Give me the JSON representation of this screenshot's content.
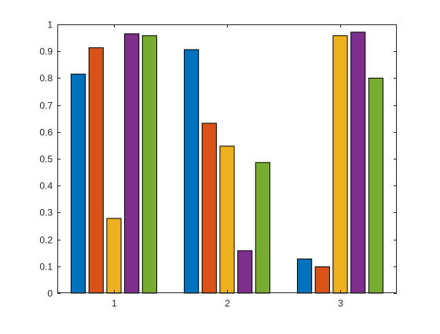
{
  "chart_data": {
    "type": "bar",
    "categories": [
      "1",
      "2",
      "3"
    ],
    "series": [
      {
        "color": "#0072BD",
        "values": [
          0.815,
          0.906,
          0.127
        ]
      },
      {
        "color": "#D95319",
        "values": [
          0.913,
          0.632,
          0.098
        ]
      },
      {
        "color": "#EDB120",
        "values": [
          0.278,
          0.547,
          0.958
        ]
      },
      {
        "color": "#7E2F8E",
        "values": [
          0.965,
          0.158,
          0.971
        ]
      },
      {
        "color": "#77AC30",
        "values": [
          0.958,
          0.486,
          0.8
        ]
      }
    ],
    "y_ticks": [
      "0",
      "0.1",
      "0.2",
      "0.3",
      "0.4",
      "0.5",
      "0.6",
      "0.7",
      "0.8",
      "0.9",
      "1"
    ],
    "ylim": [
      0,
      1
    ],
    "grid": false,
    "legend": "none",
    "title": "",
    "xlabel": "",
    "ylabel": ""
  }
}
